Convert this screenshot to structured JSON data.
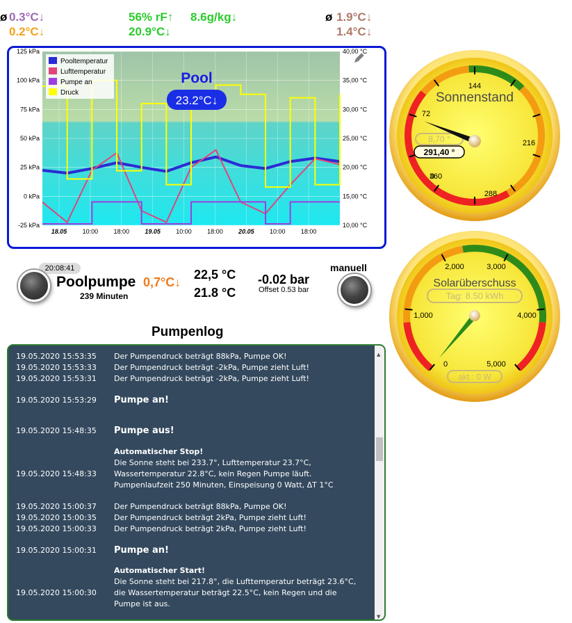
{
  "header": {
    "left_avg_symbol": "ø",
    "left_top": "0.3°C↓",
    "left_bottom": "0.2°C↓",
    "center_humidity": "56% rF↑",
    "center_abs_humidity": "8.6g/kg↓",
    "center_temp": "20.9°C↓",
    "right_avg_symbol": "ø",
    "right_top": "1.9°C↓",
    "right_bottom": "1.4°C↓"
  },
  "chart": {
    "title": "Pool",
    "current_value": "23.2°C↓",
    "legend": [
      "Pooltemperatur",
      "Lufttemperatur",
      "Pumpe an",
      "Druck"
    ],
    "left_ticks": [
      "125 kPa",
      "100 kPa",
      "75 kPa",
      "50 kPa",
      "25 kPa",
      "0 kPa",
      "-25 kPa"
    ],
    "right_ticks": [
      "40,00 °C",
      "35,00 °C",
      "30,00 °C",
      "25,00 °C",
      "20,00 °C",
      "15,00 °C",
      "10,00 °C"
    ],
    "x_ticks": [
      "18.05",
      "10:00",
      "18:00",
      "19.05",
      "10:00",
      "18:00",
      "20.05",
      "10:00",
      "18:00"
    ],
    "colors": {
      "pool": "#2b2bd4",
      "air": "#e0457b",
      "pump": "#9b3fe0",
      "pressure": "#ffff00"
    }
  },
  "chart_data": {
    "type": "line",
    "x": [
      "18.05 00:00",
      "18.05 06:00",
      "18.05 12:00",
      "18.05 18:00",
      "19.05 00:00",
      "19.05 06:00",
      "19.05 12:00",
      "19.05 18:00",
      "20.05 00:00",
      "20.05 06:00",
      "20.05 12:00",
      "20.05 18:00",
      "21.05 00:00"
    ],
    "series": [
      {
        "name": "Pooltemperatur",
        "axis": "right",
        "values": [
          19.5,
          19.0,
          19.8,
          20.8,
          20.0,
          19.3,
          20.8,
          21.8,
          20.3,
          19.8,
          21.0,
          21.6,
          21.0
        ]
      },
      {
        "name": "Lufttemperatur",
        "axis": "right",
        "values": [
          14.0,
          10.5,
          19.5,
          22.5,
          12.5,
          10.5,
          20.0,
          23.0,
          14.0,
          12.0,
          17.0,
          21.5,
          20.5
        ]
      },
      {
        "name": "Druck",
        "axis": "left",
        "values": [
          95,
          15,
          100,
          22,
          80,
          10,
          85,
          96,
          88,
          8,
          85,
          10,
          88
        ]
      },
      {
        "name": "Pumpe an",
        "axis": "left",
        "values": [
          0,
          0,
          1,
          1,
          0,
          0,
          1,
          1,
          1,
          0,
          1,
          1,
          1
        ]
      }
    ],
    "ylim_left": [
      -25,
      125
    ],
    "ylim_right": [
      10,
      40
    ]
  },
  "pump": {
    "time": "20:08:41",
    "label": "Poolpumpe",
    "delta": "0,7°C↓",
    "minutes": "239 Minuten",
    "temp_a": "22,5 °C",
    "temp_b": "21.8 °C",
    "pressure": "-0.02 bar",
    "offset": "Offset 0.53 bar",
    "mode": "manuell"
  },
  "log": {
    "title": "Pumpenlog",
    "entries": [
      {
        "ts": "19.05.2020 15:53:35",
        "msg": "Der Pumpendruck beträgt 88kPa, Pumpe OK!"
      },
      {
        "ts": "19.05.2020 15:53:33",
        "msg": "Der Pumpendruck beträgt -2kPa, Pumpe zieht Luft!"
      },
      {
        "ts": "19.05.2020 15:53:31",
        "msg": "Der Pumpendruck beträgt -2kPa, Pumpe zieht Luft!"
      },
      {
        "ts": "19.05.2020 15:53:29",
        "msg": "Pumpe an!"
      },
      {
        "ts": "19.05.2020 15:48:35",
        "msg": "Pumpe aus!"
      },
      {
        "ts": "19.05.2020 15:48:33",
        "head": "Automatischer Stop!",
        "l1": "Die Sonne steht bei 233.7°, Lufttemperatur 23.7°C,",
        "l2": "Wassertemperatur 22.8°C, kein Regen Pumpe läuft.",
        "l3": "Pumpenlaufzeit 250 Minuten, Einspeisung 0 Watt, ΔT 1°C"
      },
      {
        "ts": "19.05.2020 15:00:37",
        "msg": "Der Pumpendruck beträgt 88kPa, Pumpe OK!"
      },
      {
        "ts": "19.05.2020 15:00:35",
        "msg": "Der Pumpendruck beträgt 2kPa, Pumpe zieht Luft!"
      },
      {
        "ts": "19.05.2020 15:00:33",
        "msg": "Der Pumpendruck beträgt 2kPa, Pumpe zieht Luft!"
      },
      {
        "ts": "19.05.2020 15:00:31",
        "msg": "Pumpe an!"
      },
      {
        "ts": "19.05.2020 15:00:30",
        "head": "Automatischer Start!",
        "l1": "Die Sonne steht bei 217.8°, die Lufttemperatur beträgt 23.6°C,",
        "l2": "die Wassertemperatur beträgt 22.5°C, kein Regen und die",
        "l3": "Pumpe ist aus."
      }
    ]
  },
  "gauge_sun": {
    "title": "Sonnenstand",
    "box_upper": "8,70 °",
    "box_lower": "291,40 °",
    "ticks": [
      "144",
      "72",
      "216",
      "0",
      "360",
      "288"
    ],
    "value_deg": 291.4
  },
  "gauge_solar": {
    "title": "Solarüberschuss",
    "box_upper": "Tag: 8.50 kWh",
    "box_lower": "akt.: 0 W",
    "ticks": [
      "2,000",
      "3,000",
      "1,000",
      "4,000",
      "0",
      "5,000"
    ],
    "value": 0
  }
}
